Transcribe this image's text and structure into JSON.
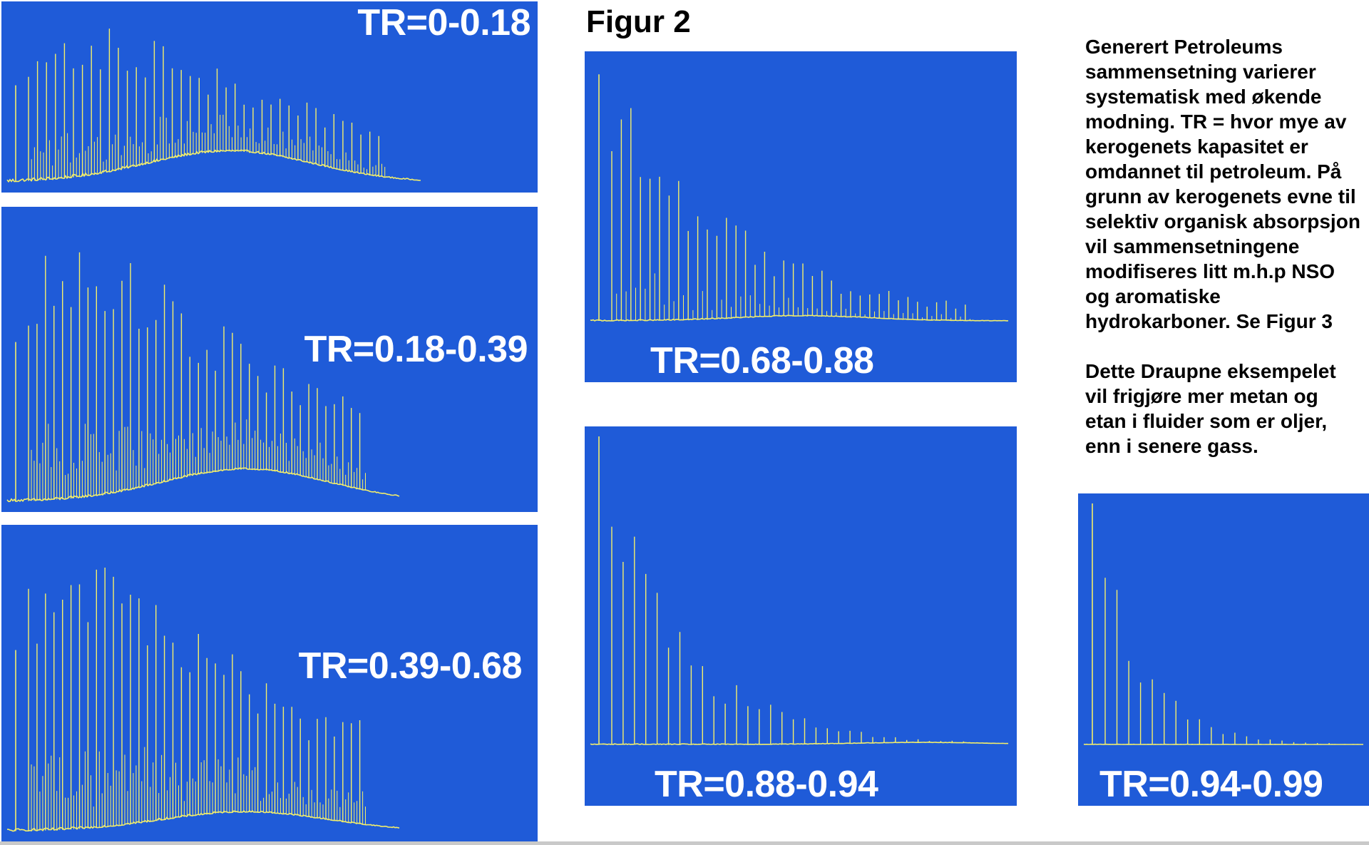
{
  "figure_title": "Figur 2",
  "caption": {
    "paragraph_1": "Generert Petroleums sammensetning varierer systematisk med økende modning. TR = hvor mye av kerogenets kapasitet er omdannet til petroleum. På grunn av kerogenets evne til selektiv organisk absorpsjon vil sammensetningene modifiseres litt m.h.p NSO og aromatiske hydrokarboner.   Se Figur 3",
    "paragraph_2": "Dette Draupne eksempelet vil frigjøre mer metan og etan i fluider som er oljer, enn i senere gass."
  },
  "colors": {
    "panel_background": "#1f5bd8",
    "trace": "#f4ef6a",
    "label": "#ffffff"
  },
  "chart_data": [
    {
      "type": "line",
      "label": "TR=0-0.18",
      "peaks": 40,
      "decay": 0.55,
      "hump": 0.55,
      "hump_center": 0.42,
      "noise": 0.35,
      "tail": 0.78,
      "first_peak": 0.55
    },
    {
      "type": "line",
      "label": "TR=0.18-0.39",
      "peaks": 40,
      "decay": 0.6,
      "hump": 0.35,
      "hump_center": 0.45,
      "noise": 0.3,
      "tail": 0.74,
      "first_peak": 0.55
    },
    {
      "type": "line",
      "label": "TR=0.39-0.68",
      "peaks": 40,
      "decay": 0.7,
      "hump": 0.2,
      "hump_center": 0.45,
      "noise": 0.28,
      "tail": 0.74,
      "first_peak": 0.6
    },
    {
      "type": "line",
      "label": "TR=0.68-0.88",
      "peaks": 38,
      "decay": 0.9,
      "hump": 0.06,
      "hump_center": 0.5,
      "noise": 0.12,
      "tail": 0.98,
      "first_peak": 0.95
    },
    {
      "type": "line",
      "label": "TR=0.88-0.94",
      "peaks": 32,
      "decay": 1.5,
      "hump": 0.02,
      "hump_center": 0.78,
      "noise": 0.08,
      "tail": 0.98,
      "first_peak": 1.0
    },
    {
      "type": "line",
      "label": "TR=0.94-0.99",
      "peaks": 20,
      "decay": 1.8,
      "hump": 0.0,
      "hump_center": 0.5,
      "noise": 0.03,
      "tail": 0.98,
      "first_peak": 1.0
    }
  ]
}
